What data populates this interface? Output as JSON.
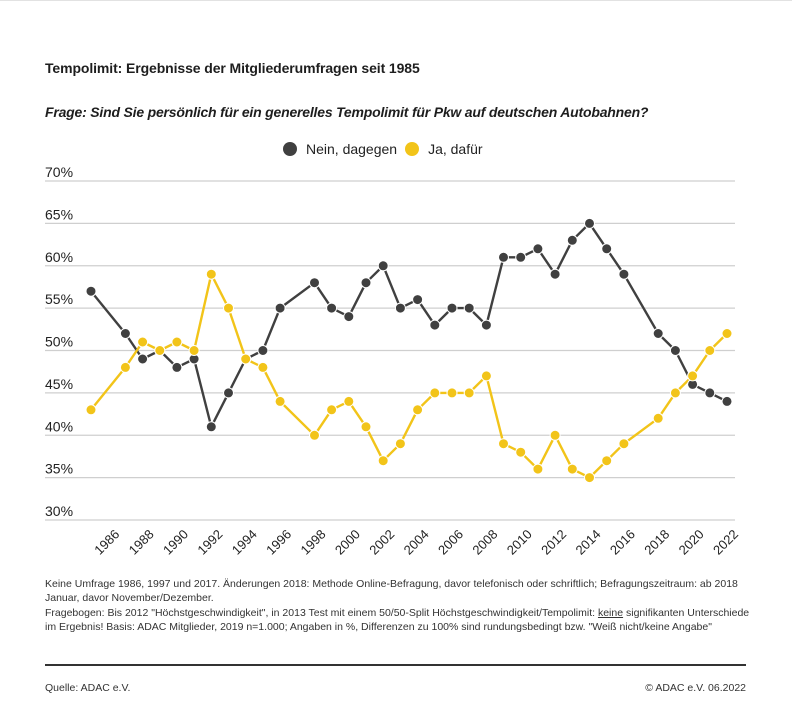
{
  "chart_data": {
    "type": "line",
    "title": "Tempolimit: Ergebnisse der Mitgliederumfragen seit 1985",
    "subtitle": "Frage: Sind Sie persönlich für ein generelles Tempolimit für Pkw auf deutschen Autobahnen?",
    "xlabel": "",
    "ylabel": "",
    "xlim": [
      1985,
      2022
    ],
    "ylim": [
      30,
      70
    ],
    "y_ticks": [
      30,
      35,
      40,
      45,
      50,
      55,
      60,
      65,
      70
    ],
    "y_tick_labels": [
      "30%",
      "35%",
      "40%",
      "45%",
      "50%",
      "55%",
      "60%",
      "65%",
      "70%"
    ],
    "x_ticks": [
      1986,
      1988,
      1990,
      1992,
      1994,
      1996,
      1998,
      2000,
      2002,
      2004,
      2006,
      2008,
      2010,
      2012,
      2014,
      2016,
      2018,
      2020,
      2022
    ],
    "x_tick_labels": [
      "1986",
      "1988",
      "1990",
      "1992",
      "1994",
      "1996",
      "1998",
      "2000",
      "2002",
      "2004",
      "2006",
      "2008",
      "2010",
      "2012",
      "2014",
      "2016",
      "2018",
      "2020",
      "2022"
    ],
    "grid": true,
    "legend_position": "top-center",
    "x": [
      1985,
      1987,
      1988,
      1989,
      1990,
      1991,
      1992,
      1993,
      1994,
      1995,
      1996,
      1998,
      1999,
      2000,
      2001,
      2002,
      2003,
      2004,
      2005,
      2006,
      2007,
      2008,
      2009,
      2010,
      2011,
      2012,
      2013,
      2014,
      2015,
      2016,
      2018,
      2019,
      2020,
      2021,
      2022
    ],
    "series": [
      {
        "name": "Nein, dagegen",
        "color": "#404040",
        "values": [
          57,
          52,
          49,
          50,
          48,
          49,
          41,
          45,
          49,
          50,
          55,
          58,
          55,
          54,
          58,
          60,
          55,
          56,
          53,
          55,
          55,
          53,
          61,
          61,
          62,
          59,
          63,
          65,
          62,
          59,
          52,
          50,
          46,
          45,
          44
        ]
      },
      {
        "name": "Ja, dafür",
        "color": "#f2c419",
        "values": [
          43,
          48,
          51,
          50,
          51,
          50,
          59,
          55,
          49,
          48,
          44,
          40,
          43,
          44,
          41,
          37,
          39,
          43,
          45,
          45,
          45,
          47,
          39,
          38,
          36,
          40,
          36,
          35,
          37,
          39,
          42,
          45,
          47,
          50,
          52
        ]
      }
    ]
  },
  "notes": {
    "line1": "Keine Umfrage 1986, 1997 und 2017. Änderungen 2018: Methode Online-Befragung, davor telefonisch oder schriftlich; Befragungszeitraum: ab 2018 Januar, davor November/Dezember.",
    "line2_before": "Fragebogen: Bis 2012 \"Höchstgeschwindigkeit\", in 2013 Test mit einem 50/50-Split Höchstgeschwindigkeit/Tempolimit: ",
    "line2_underlined": "keine",
    "line2_after": " signifikanten Unterschiede im Ergebnis! Basis: ADAC Mitglieder, 2019 n=1.000; Angaben in %, Differenzen zu 100% sind rundungsbedingt bzw. \"Weiß nicht/keine Angabe\""
  },
  "footer": {
    "source": "Quelle: ADAC e.V.",
    "copyright": "© ADAC e.V. 06.2022"
  }
}
